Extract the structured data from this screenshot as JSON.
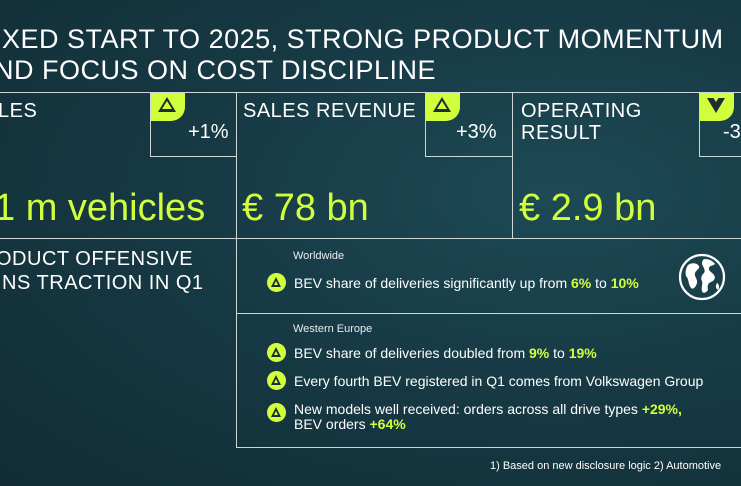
{
  "title": {
    "line1": "IXED START TO 2025, STRONG PRODUCT MOMENTUM",
    "line2": "ND FOCUS ON COST DISCIPLINE"
  },
  "kpis": [
    {
      "label": "LES",
      "label_line2": "",
      "delta": "+1%",
      "delta_direction": "up",
      "value": "1 m vehicles"
    },
    {
      "label": "SALES REVENUE",
      "label_line2": "",
      "delta": "+3%",
      "delta_direction": "up",
      "value": "€ 78 bn"
    },
    {
      "label": "OPERATING",
      "label_line2": "RESULT",
      "delta": "-3",
      "delta_direction": "down",
      "value": "€ 2.9 bn"
    }
  ],
  "product": {
    "title_line1": "ODUCT OFFENSIVE",
    "title_line2": "INS TRACTION IN Q1"
  },
  "worldwide": {
    "region": "Worldwide",
    "bullets": [
      {
        "pre": "BEV share of deliveries significantly up from ",
        "v1": "6%",
        "mid": " to ",
        "v2": "10%"
      }
    ],
    "icon": "globe-icon"
  },
  "western_europe": {
    "region": "Western Europe",
    "bullet1": {
      "pre": "BEV share of deliveries doubled from ",
      "v1": "9%",
      "mid": " to ",
      "v2": "19%"
    },
    "bullet2": {
      "text": "Every fourth BEV registered in Q1 comes from Volkswagen Group"
    },
    "bullet3": {
      "line1_pre": "New models well received: orders across all drive types ",
      "line1_val": "+29%,",
      "line2_pre": "BEV orders ",
      "line2_val": "+64%"
    }
  },
  "footnote": "1)  Based on new disclosure logic   2) Automotive",
  "colors": {
    "accent": "#d2ff3c",
    "background": "#173a45",
    "line": "#cdd6d8"
  }
}
